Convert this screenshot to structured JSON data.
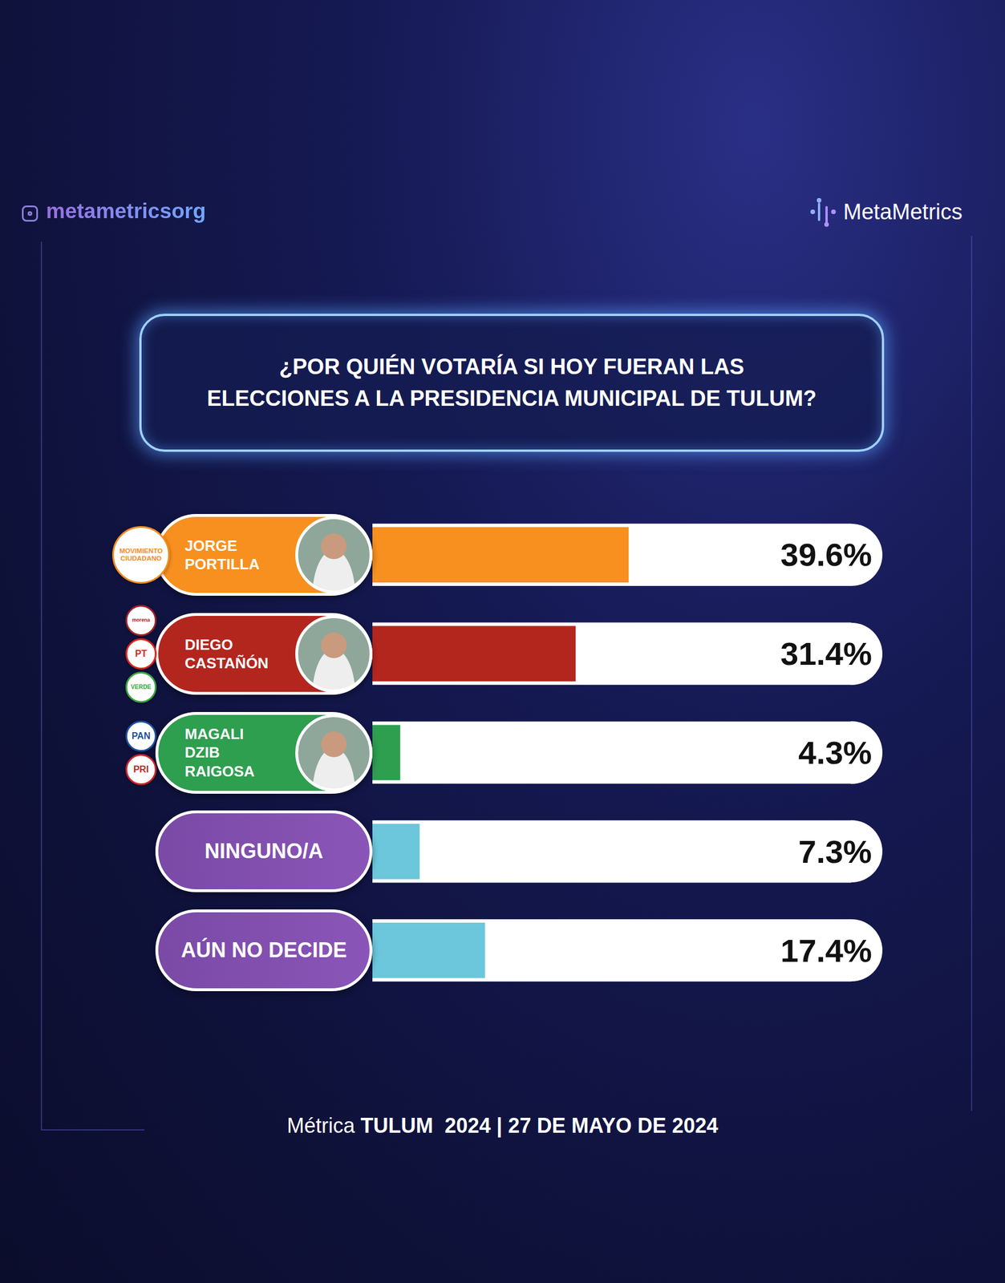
{
  "header": {
    "handle": "metametricsorg",
    "brand": "MetaMetrics"
  },
  "chart_data": {
    "type": "bar",
    "orientation": "horizontal",
    "title": "¿POR QUIÉN VOTARÍA SI HOY FUERAN LAS ELECCIONES A LA PRESIDENCIA MUNICIPAL DE TULUM?",
    "categories": [
      "JORGE PORTILLA",
      "DIEGO CASTAÑÓN",
      "MAGALI DZIB RAIGOSA",
      "NINGUNO/A",
      "AÚN NO DECIDE"
    ],
    "values": [
      39.6,
      31.4,
      4.3,
      7.3,
      17.4
    ],
    "value_labels": [
      "39.6%",
      "31.4%",
      "4.3%",
      "7.3%",
      "17.4%"
    ],
    "colors": [
      "#f7901e",
      "#b3261e",
      "#2e9e4f",
      "#6cc7dc",
      "#6cc7dc"
    ],
    "xlim": [
      0,
      74
    ],
    "xticks": [],
    "tick_labels": false,
    "grid": false,
    "data_labels": true,
    "parties": [
      [
        {
          "name": "MOVIMIENTO CIUDADANO",
          "color": "#f28c1e"
        }
      ],
      [
        {
          "name": "morena",
          "color": "#a1202a"
        },
        {
          "name": "PT",
          "color": "#e2231a"
        },
        {
          "name": "VERDE",
          "color": "#3aa63f"
        }
      ],
      [
        {
          "name": "PAN",
          "color": "#1d4f9c"
        },
        {
          "name": "PRI",
          "color": "#d3202a"
        }
      ],
      [],
      []
    ]
  },
  "footer": {
    "label": "Métrica",
    "text": "TULUM  2024 | 27 DE MAYO DE 2024"
  }
}
